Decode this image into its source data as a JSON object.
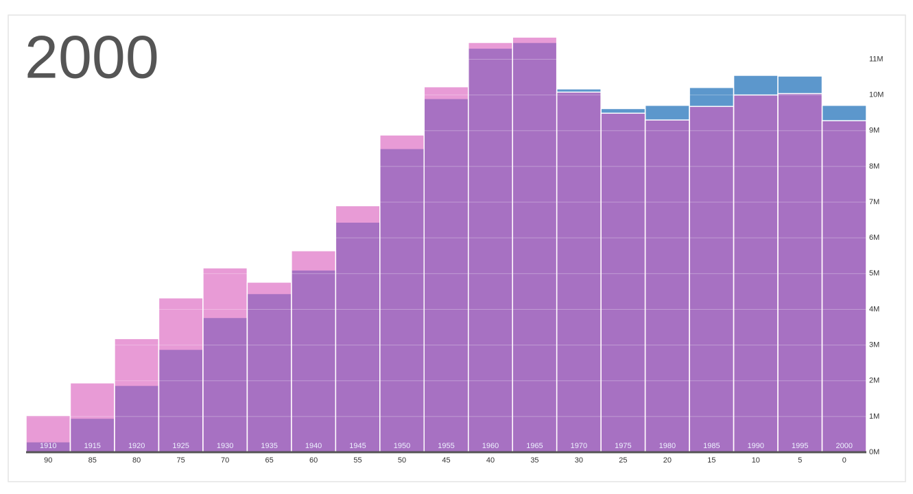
{
  "chart_data": {
    "type": "bar",
    "title": "2000",
    "categories": [
      "90",
      "85",
      "80",
      "75",
      "70",
      "65",
      "60",
      "55",
      "50",
      "45",
      "40",
      "35",
      "30",
      "25",
      "20",
      "15",
      "10",
      "5",
      "0"
    ],
    "birth_years": [
      "1910",
      "1915",
      "1920",
      "1925",
      "1930",
      "1935",
      "1940",
      "1945",
      "1950",
      "1955",
      "1960",
      "1965",
      "1970",
      "1975",
      "1980",
      "1985",
      "1990",
      "1995",
      "2000"
    ],
    "series": [
      {
        "color": "#5c97cc",
        "values": [
          0.29,
          0.95,
          1.87,
          2.88,
          3.77,
          4.44,
          5.1,
          6.44,
          8.5,
          9.9,
          11.31,
          11.47,
          10.17,
          9.62,
          9.71,
          10.21,
          10.55,
          10.53,
          9.71
        ]
      },
      {
        "color": "#d958bb",
        "values": [
          1.03,
          1.94,
          3.18,
          4.32,
          5.16,
          4.76,
          5.64,
          6.9,
          8.88,
          10.23,
          11.47,
          11.62,
          10.08,
          9.49,
          9.3,
          9.68,
          10.0,
          10.04,
          9.28
        ]
      }
    ],
    "ylim": [
      0,
      11.7
    ],
    "yticks": [
      {
        "value": 0,
        "label": "0M"
      },
      {
        "value": 1,
        "label": "1M"
      },
      {
        "value": 2,
        "label": "2M"
      },
      {
        "value": 3,
        "label": "3M"
      },
      {
        "value": 4,
        "label": "4M"
      },
      {
        "value": 5,
        "label": "5M"
      },
      {
        "value": 6,
        "label": "6M"
      },
      {
        "value": 7,
        "label": "7M"
      },
      {
        "value": 8,
        "label": "8M"
      },
      {
        "value": 9,
        "label": "9M"
      },
      {
        "value": 10,
        "label": "10M"
      },
      {
        "value": 11,
        "label": "11M"
      }
    ],
    "grid": true
  }
}
